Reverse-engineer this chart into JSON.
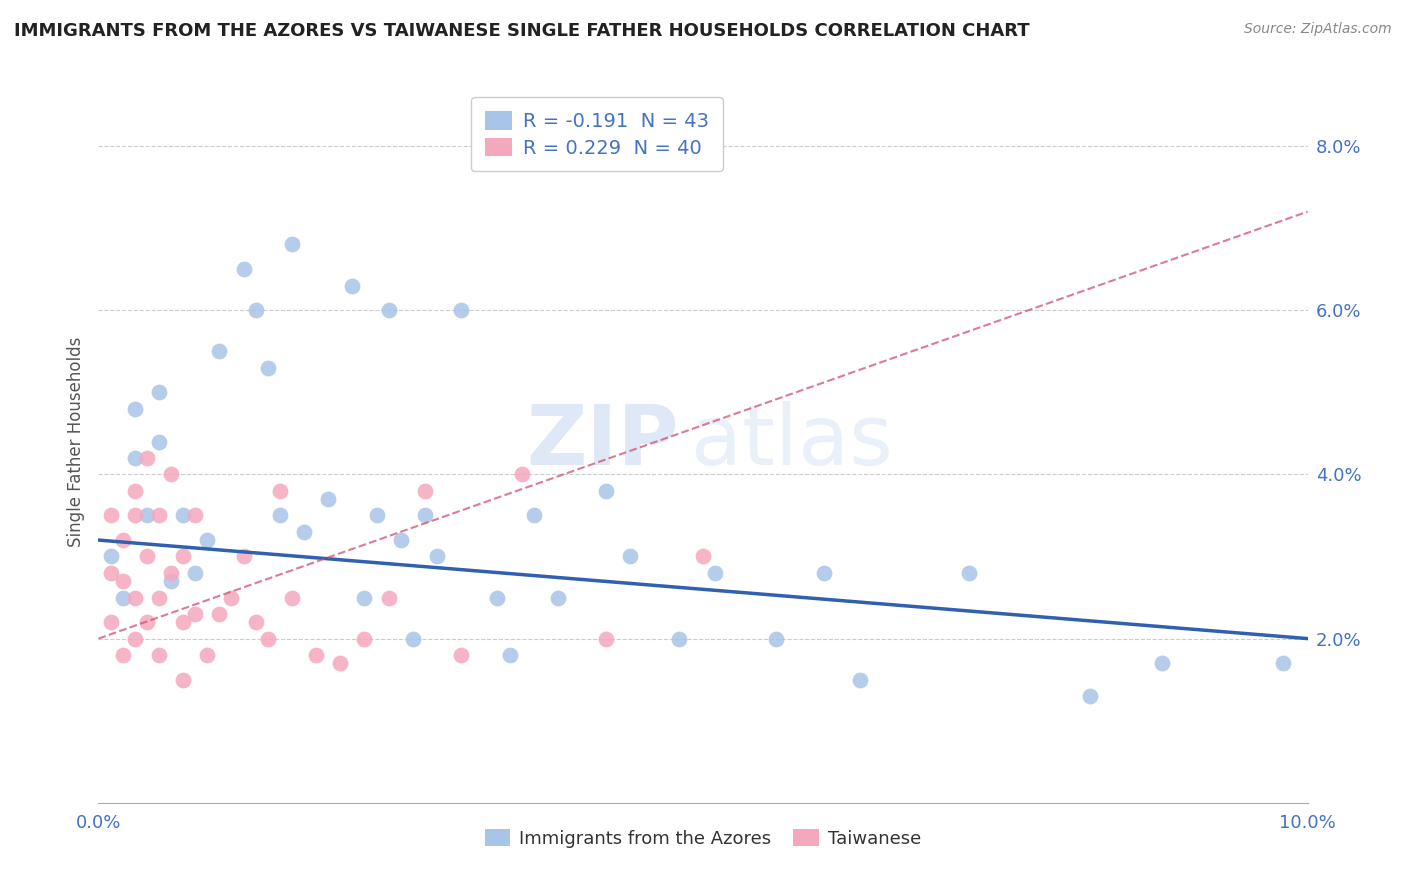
{
  "title": "IMMIGRANTS FROM THE AZORES VS TAIWANESE SINGLE FATHER HOUSEHOLDS CORRELATION CHART",
  "source": "Source: ZipAtlas.com",
  "ylabel": "Single Father Households",
  "xlim": [
    0.0,
    0.1
  ],
  "ylim": [
    0.0,
    0.088
  ],
  "xticks": [
    0.0,
    0.02,
    0.04,
    0.06,
    0.08,
    0.1
  ],
  "yticks": [
    0.02,
    0.04,
    0.06,
    0.08
  ],
  "xticklabels": [
    "0.0%",
    "",
    "",
    "",
    "",
    "10.0%"
  ],
  "yticklabels": [
    "2.0%",
    "4.0%",
    "6.0%",
    "8.0%"
  ],
  "legend_label1": "Immigrants from the Azores",
  "legend_label2": "Taiwanese",
  "R1": -0.191,
  "N1": 43,
  "R2": 0.229,
  "N2": 40,
  "color1": "#a8c4e8",
  "color2": "#f4a8bc",
  "line1_color": "#3060b0",
  "line2_color": "#d05070",
  "watermark_zip": "ZIP",
  "watermark_atlas": "atlas",
  "background_color": "#ffffff",
  "azores_x": [
    0.001,
    0.002,
    0.003,
    0.003,
    0.004,
    0.005,
    0.005,
    0.006,
    0.007,
    0.008,
    0.009,
    0.01,
    0.012,
    0.013,
    0.014,
    0.015,
    0.016,
    0.017,
    0.019,
    0.021,
    0.022,
    0.023,
    0.024,
    0.025,
    0.026,
    0.027,
    0.028,
    0.03,
    0.033,
    0.034,
    0.036,
    0.038,
    0.042,
    0.044,
    0.048,
    0.051,
    0.056,
    0.06,
    0.063,
    0.072,
    0.082,
    0.088,
    0.098
  ],
  "azores_y": [
    0.03,
    0.025,
    0.048,
    0.042,
    0.035,
    0.05,
    0.044,
    0.027,
    0.035,
    0.028,
    0.032,
    0.055,
    0.065,
    0.06,
    0.053,
    0.035,
    0.068,
    0.033,
    0.037,
    0.063,
    0.025,
    0.035,
    0.06,
    0.032,
    0.02,
    0.035,
    0.03,
    0.06,
    0.025,
    0.018,
    0.035,
    0.025,
    0.038,
    0.03,
    0.02,
    0.028,
    0.02,
    0.028,
    0.015,
    0.028,
    0.013,
    0.017,
    0.017
  ],
  "taiwanese_x": [
    0.001,
    0.001,
    0.001,
    0.002,
    0.002,
    0.002,
    0.003,
    0.003,
    0.003,
    0.003,
    0.004,
    0.004,
    0.004,
    0.005,
    0.005,
    0.005,
    0.006,
    0.006,
    0.007,
    0.007,
    0.007,
    0.008,
    0.008,
    0.009,
    0.01,
    0.011,
    0.012,
    0.013,
    0.014,
    0.015,
    0.016,
    0.018,
    0.02,
    0.022,
    0.024,
    0.027,
    0.03,
    0.035,
    0.042,
    0.05
  ],
  "taiwanese_y": [
    0.028,
    0.022,
    0.035,
    0.032,
    0.027,
    0.018,
    0.038,
    0.035,
    0.025,
    0.02,
    0.042,
    0.03,
    0.022,
    0.035,
    0.025,
    0.018,
    0.04,
    0.028,
    0.022,
    0.03,
    0.015,
    0.035,
    0.023,
    0.018,
    0.023,
    0.025,
    0.03,
    0.022,
    0.02,
    0.038,
    0.025,
    0.018,
    0.017,
    0.02,
    0.025,
    0.038,
    0.018,
    0.04,
    0.02,
    0.03
  ],
  "blue_line_x": [
    0.0,
    0.1
  ],
  "blue_line_y": [
    0.032,
    0.02
  ],
  "pink_line_x": [
    0.0,
    0.1
  ],
  "pink_line_y": [
    0.02,
    0.072
  ]
}
